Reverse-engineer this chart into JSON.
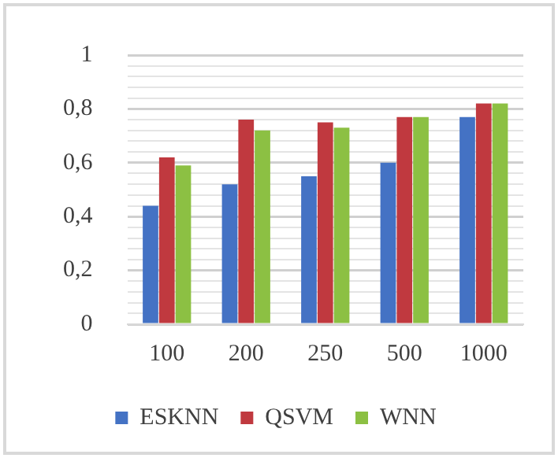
{
  "chart_data": {
    "type": "bar",
    "categories": [
      "100",
      "200",
      "250",
      "500",
      "1000"
    ],
    "series": [
      {
        "name": "ESKNN",
        "color": "#4472c4",
        "values": [
          0.44,
          0.52,
          0.55,
          0.6,
          0.77
        ]
      },
      {
        "name": "QSVM",
        "color": "#c0393f",
        "values": [
          0.62,
          0.76,
          0.75,
          0.77,
          0.82
        ]
      },
      {
        "name": "WNN",
        "color": "#8cc043",
        "values": [
          0.59,
          0.72,
          0.73,
          0.77,
          0.82
        ]
      }
    ],
    "ylim": [
      0,
      1
    ],
    "yticks": [
      0,
      {
        "value": 0.04,
        "label": null
      },
      {
        "value": 0.08,
        "label": null
      },
      {
        "value": 0.12,
        "label": null
      },
      {
        "value": 0.16,
        "label": null
      },
      {
        "value": 0.2,
        "label": "0,2"
      },
      {
        "value": 0.24,
        "label": null
      },
      {
        "value": 0.28,
        "label": null
      },
      {
        "value": 0.32,
        "label": null
      },
      {
        "value": 0.36,
        "label": null
      },
      {
        "value": 0.4,
        "label": "0,4"
      },
      {
        "value": 0.44,
        "label": null
      },
      {
        "value": 0.48,
        "label": null
      },
      {
        "value": 0.52,
        "label": null
      },
      {
        "value": 0.56,
        "label": null
      },
      {
        "value": 0.6,
        "label": "0,6"
      },
      {
        "value": 0.64,
        "label": null
      },
      {
        "value": 0.68,
        "label": null
      },
      {
        "value": 0.72,
        "label": null
      },
      {
        "value": 0.76,
        "label": null
      },
      {
        "value": 0.8,
        "label": "0,8"
      },
      {
        "value": 0.84,
        "label": null
      },
      {
        "value": 0.88,
        "label": null
      },
      {
        "value": 0.92,
        "label": null
      },
      {
        "value": 0.96,
        "label": null
      },
      1
    ],
    "grid": "y",
    "legend": "bottom"
  }
}
